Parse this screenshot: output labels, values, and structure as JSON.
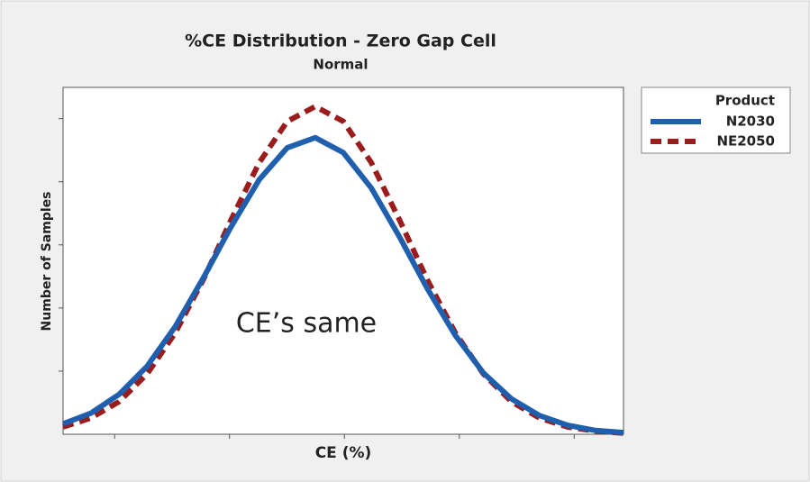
{
  "chart_data": {
    "type": "line",
    "title": "%CE Distribution - Zero Gap Cell",
    "subtitle": "Normal",
    "x_label": "CE (%)",
    "y_label": "Number of Samples",
    "annotation": "CE’s same",
    "legend_title": "Product",
    "legend": "right",
    "x": [
      0,
      5,
      10,
      15,
      20,
      25,
      30,
      35,
      40,
      45,
      50,
      55,
      60,
      65,
      70,
      75,
      80,
      85,
      90,
      95,
      100
    ],
    "series": [
      {
        "name": "N2030",
        "color": "#1f5fad",
        "style": "solid",
        "values": [
          3.0,
          6.1,
          11.5,
          19.6,
          31.0,
          45.0,
          59.9,
          73.4,
          82.6,
          85.5,
          81.2,
          71.0,
          57.0,
          42.0,
          28.5,
          17.7,
          10.2,
          5.4,
          2.6,
          1.1,
          0.5
        ]
      },
      {
        "name": "NE2050",
        "color": "#9b1c1c",
        "style": "dashed",
        "values": [
          2.1,
          4.7,
          9.4,
          17.4,
          29.2,
          44.5,
          61.9,
          78.3,
          90.2,
          94.5,
          90.2,
          78.3,
          61.9,
          44.5,
          29.2,
          17.4,
          9.4,
          4.7,
          2.1,
          0.9,
          0.3
        ]
      }
    ],
    "xlim": [
      0,
      100
    ],
    "ylim": [
      0,
      100
    ],
    "xticks": [
      9.2,
      29.7,
      50.2,
      70.7,
      91.2
    ],
    "yticks": [
      18.2,
      36.4,
      54.6,
      72.8,
      91
    ],
    "grid": false
  }
}
